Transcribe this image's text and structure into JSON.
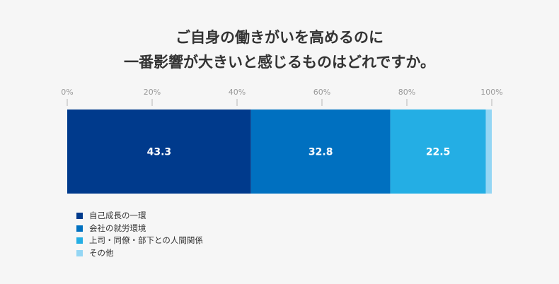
{
  "title_lines": [
    "ご自身の働きがいを高めるのに",
    "一番影響が大きいと感じるものはどれですか。"
  ],
  "chart_data": {
    "type": "bar",
    "orientation": "horizontal",
    "stacked": true,
    "xlim": [
      0,
      100
    ],
    "ticks": [
      "0%",
      "20%",
      "40%",
      "60%",
      "80%",
      "100%"
    ],
    "tick_values": [
      0,
      20,
      40,
      60,
      80,
      100
    ],
    "series": [
      {
        "name": "自己成長の一環",
        "value": 43.3,
        "label": "43.3",
        "color": "#003a8c"
      },
      {
        "name": "会社の就労環境",
        "value": 32.8,
        "label": "32.8",
        "color": "#0070c0"
      },
      {
        "name": "上司・同僚・部下との人間関係",
        "value": 22.5,
        "label": "22.5",
        "color": "#24aee4"
      },
      {
        "name": "その他",
        "value": 1.4,
        "label": "",
        "color": "#94d6f4"
      }
    ],
    "legend_position": "bottom-left",
    "grid": false
  }
}
